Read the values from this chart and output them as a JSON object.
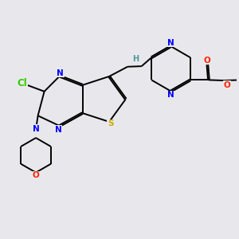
{
  "background_color": "#e8e8ec",
  "bond_color": "#000000",
  "bond_lw": 1.4,
  "dbo": 0.06,
  "figsize": [
    3.0,
    3.0
  ],
  "dpi": 100,
  "colors": {
    "Cl": "#33cc00",
    "N": "#0000ff",
    "S": "#ccaa00",
    "O": "#ff2200",
    "NH": "#4d9999",
    "bond": "#000000"
  },
  "font_size": 7.5
}
